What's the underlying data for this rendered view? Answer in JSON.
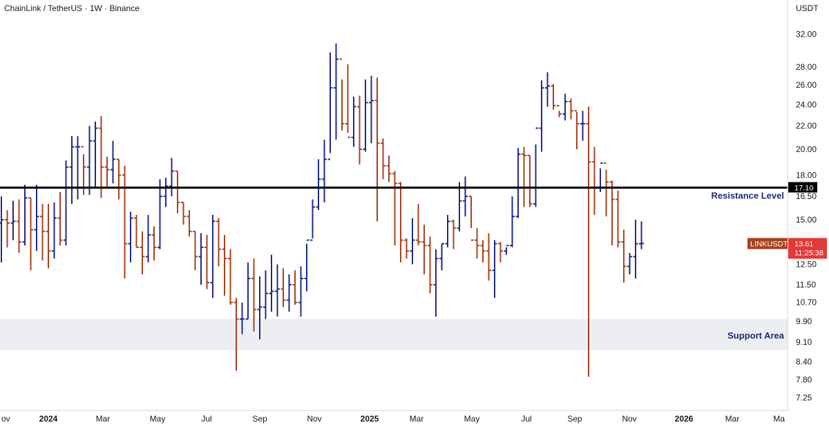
{
  "chart_data": {
    "type": "ohlc",
    "title": "ChainLink / TetherUS · 1W · Binance",
    "price_axis_unit": "USDT",
    "y_scale": "log",
    "ylim": [
      7.0,
      34.0
    ],
    "y_ticks": [
      32.0,
      28.0,
      26.0,
      24.0,
      22.0,
      20.0,
      18.0,
      16.5,
      15.0,
      13.5,
      12.5,
      11.5,
      10.7,
      9.9,
      9.1,
      8.4,
      7.8,
      7.25
    ],
    "y_tick_labels": [
      "32.00",
      "28.00",
      "26.00",
      "24.00",
      "22.00",
      "20.00",
      "18.00",
      "16.50",
      "15.00",
      "13.50",
      "12.50",
      "11.50",
      "10.70",
      "9.90",
      "9.10",
      "8.40",
      "7.80",
      "7.25"
    ],
    "x_tick_labels": [
      "ov",
      "2024",
      "Mar",
      "May",
      "Jul",
      "Sep",
      "Nov",
      "2025",
      "Mar",
      "May",
      "Jul",
      "Sep",
      "Nov",
      "2026",
      "Mar",
      "Ma"
    ],
    "x_tick_bold": [
      false,
      true,
      false,
      false,
      false,
      false,
      false,
      true,
      false,
      false,
      false,
      false,
      false,
      true,
      false,
      false
    ],
    "up_color": "#1e2a8a",
    "down_color": "#a8411d",
    "resistance": {
      "label": "Resistance Level",
      "value": 17.1,
      "value_label": "17.10"
    },
    "support": {
      "label": "Support Area",
      "low": 8.8,
      "high": 10.0
    },
    "last_price": {
      "symbol": "LINKUSDT",
      "value": 13.61,
      "value_label": "13.61",
      "countdown": "11:25:38",
      "color": "#e53935"
    },
    "bars": [
      [
        14.8,
        16.5,
        12.6,
        15.0
      ],
      [
        15.0,
        15.6,
        13.4,
        14.8
      ],
      [
        14.8,
        16.2,
        13.8,
        14.9
      ],
      [
        14.9,
        16.3,
        13.1,
        13.7
      ],
      [
        13.7,
        17.3,
        13.5,
        16.4
      ],
      [
        16.4,
        16.4,
        12.2,
        14.4
      ],
      [
        14.4,
        17.3,
        13.2,
        15.2
      ],
      [
        15.2,
        16.0,
        12.7,
        14.3
      ],
      [
        14.3,
        16.0,
        12.3,
        13.2
      ],
      [
        13.2,
        16.1,
        12.8,
        15.1
      ],
      [
        15.1,
        16.8,
        13.5,
        13.8
      ],
      [
        13.8,
        19.1,
        13.5,
        18.6
      ],
      [
        18.6,
        21.1,
        16.0,
        20.2
      ],
      [
        20.2,
        21.1,
        16.3,
        20.2
      ],
      [
        20.2,
        19.6,
        16.6,
        18.6
      ],
      [
        18.6,
        22.0,
        16.6,
        20.7
      ],
      [
        20.7,
        22.4,
        17.1,
        21.8
      ],
      [
        21.8,
        22.9,
        16.4,
        18.6
      ],
      [
        18.6,
        19.4,
        17.1,
        18.4
      ],
      [
        18.4,
        20.7,
        17.4,
        19.2
      ],
      [
        19.2,
        19.2,
        16.3,
        18.0
      ],
      [
        18.0,
        18.7,
        11.8,
        13.6
      ],
      [
        13.6,
        15.5,
        12.6,
        15.1
      ],
      [
        15.1,
        15.3,
        13.4,
        13.4
      ],
      [
        13.4,
        14.3,
        12.0,
        12.9
      ],
      [
        12.9,
        15.3,
        12.6,
        14.1
      ],
      [
        14.1,
        14.6,
        12.7,
        13.4
      ],
      [
        13.4,
        17.7,
        13.3,
        16.5
      ],
      [
        16.5,
        17.8,
        15.8,
        17.2
      ],
      [
        17.2,
        19.3,
        16.5,
        18.3
      ],
      [
        18.3,
        18.3,
        15.4,
        16.1
      ],
      [
        16.1,
        16.1,
        14.7,
        15.2
      ],
      [
        15.2,
        15.6,
        14.0,
        14.3
      ],
      [
        14.3,
        14.3,
        12.2,
        12.9
      ],
      [
        12.9,
        14.2,
        11.5,
        13.4
      ],
      [
        13.4,
        14.1,
        11.3,
        11.6
      ],
      [
        11.6,
        15.3,
        10.9,
        14.9
      ],
      [
        14.9,
        15.1,
        12.4,
        13.3
      ],
      [
        13.3,
        14.1,
        11.0,
        12.8
      ],
      [
        12.8,
        13.3,
        10.6,
        10.7
      ],
      [
        10.7,
        10.9,
        8.1,
        10.0
      ],
      [
        10.0,
        10.7,
        9.4,
        10.0
      ],
      [
        10.0,
        12.6,
        10.0,
        11.8
      ],
      [
        11.8,
        12.8,
        9.5,
        10.4
      ],
      [
        10.4,
        11.9,
        9.2,
        10.5
      ],
      [
        10.5,
        12.2,
        10.0,
        11.1
      ],
      [
        11.1,
        13.0,
        10.3,
        11.2
      ],
      [
        11.2,
        12.5,
        10.1,
        11.3
      ],
      [
        11.3,
        12.3,
        10.5,
        10.8
      ],
      [
        10.8,
        12.0,
        10.3,
        11.5
      ],
      [
        11.5,
        12.2,
        10.6,
        10.7
      ],
      [
        10.7,
        12.4,
        10.1,
        11.8
      ],
      [
        11.8,
        13.6,
        11.2,
        13.8
      ],
      [
        13.8,
        16.3,
        13.9,
        15.8
      ],
      [
        15.8,
        19.2,
        15.6,
        17.7
      ],
      [
        17.7,
        20.8,
        16.1,
        19.2
      ],
      [
        19.2,
        29.7,
        19.7,
        25.7
      ],
      [
        25.7,
        30.8,
        20.8,
        28.9
      ],
      [
        28.9,
        26.6,
        21.6,
        22.2
      ],
      [
        22.2,
        28.3,
        21.4,
        21.0
      ],
      [
        21.0,
        24.8,
        20.2,
        23.8
      ],
      [
        23.8,
        24.9,
        18.8,
        20.0
      ],
      [
        20.0,
        26.6,
        19.8,
        24.2
      ],
      [
        24.2,
        27.0,
        20.5,
        24.4
      ],
      [
        24.4,
        26.8,
        14.9,
        20.5
      ],
      [
        20.5,
        20.9,
        17.7,
        18.7
      ],
      [
        18.7,
        19.5,
        17.5,
        18.1
      ],
      [
        18.1,
        18.3,
        13.5,
        17.4
      ],
      [
        17.4,
        17.5,
        12.6,
        13.8
      ],
      [
        13.8,
        13.9,
        12.8,
        13.2
      ],
      [
        13.2,
        15.1,
        12.5,
        13.8
      ],
      [
        13.8,
        16.0,
        13.5,
        13.7
      ],
      [
        13.7,
        14.7,
        12.0,
        13.5
      ],
      [
        13.5,
        14.0,
        11.1,
        11.5
      ],
      [
        11.5,
        13.3,
        10.1,
        12.8
      ],
      [
        12.8,
        13.6,
        12.2,
        13.6
      ],
      [
        13.6,
        15.3,
        13.4,
        14.9
      ],
      [
        14.9,
        15.0,
        13.3,
        14.5
      ],
      [
        14.5,
        17.5,
        14.3,
        16.2
      ],
      [
        16.2,
        17.9,
        15.2,
        16.5
      ],
      [
        16.5,
        16.5,
        14.5,
        13.8
      ],
      [
        13.8,
        14.5,
        12.8,
        13.5
      ],
      [
        13.5,
        13.8,
        12.6,
        13.2
      ],
      [
        13.2,
        14.2,
        11.7,
        12.2
      ],
      [
        12.2,
        13.8,
        10.9,
        13.6
      ],
      [
        13.6,
        13.7,
        12.6,
        13.2
      ],
      [
        13.2,
        13.4,
        13.0,
        13.5
      ],
      [
        13.5,
        16.5,
        13.4,
        15.2
      ],
      [
        15.2,
        20.1,
        15.1,
        19.6
      ],
      [
        19.6,
        20.2,
        15.8,
        19.5
      ],
      [
        19.5,
        19.5,
        15.8,
        16.0
      ],
      [
        16.0,
        20.4,
        15.8,
        21.8
      ],
      [
        21.8,
        26.5,
        19.8,
        25.7
      ],
      [
        25.7,
        27.4,
        23.8,
        25.9
      ],
      [
        25.9,
        26.1,
        23.5,
        23.9
      ],
      [
        23.9,
        23.4,
        22.8,
        23.1
      ],
      [
        23.1,
        25.1,
        22.5,
        24.3
      ],
      [
        24.3,
        24.6,
        22.6,
        23.4
      ],
      [
        23.4,
        23.3,
        20.0,
        22.2
      ],
      [
        22.2,
        23.4,
        20.7,
        22.2
      ],
      [
        22.2,
        23.8,
        7.9,
        19.0
      ],
      [
        19.0,
        20.2,
        15.3,
        17.1
      ],
      [
        17.1,
        18.5,
        16.8,
        18.9
      ],
      [
        18.9,
        18.4,
        15.2,
        17.5
      ],
      [
        17.5,
        17.6,
        13.5,
        16.3
      ],
      [
        16.3,
        16.9,
        13.4,
        13.7
      ],
      [
        13.7,
        14.4,
        11.6,
        12.4
      ],
      [
        12.4,
        13.1,
        12.0,
        12.9
      ],
      [
        12.9,
        15.0,
        11.8,
        13.6
      ],
      [
        13.6,
        14.9,
        13.3,
        13.61
      ]
    ]
  }
}
